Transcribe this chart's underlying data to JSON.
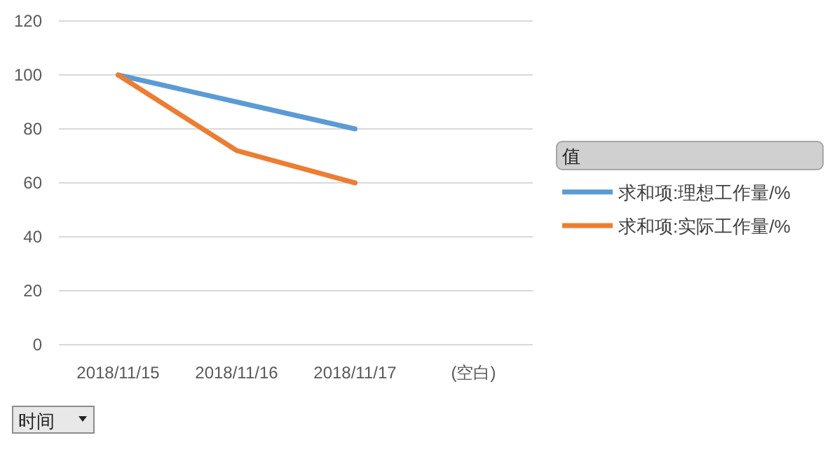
{
  "chart_data": {
    "type": "line",
    "categories": [
      "2018/11/15",
      "2018/11/16",
      "2018/11/17",
      "(空白)"
    ],
    "series": [
      {
        "name": "求和项:理想工作量/%",
        "color": "#5b9bd5",
        "values": [
          100,
          90,
          80,
          null
        ]
      },
      {
        "name": "求和项:实际工作量/%",
        "color": "#ed7d31",
        "values": [
          100,
          72,
          60,
          null
        ]
      }
    ],
    "ylim": [
      0,
      120
    ],
    "yticks": [
      0,
      20,
      40,
      60,
      80,
      100,
      120
    ],
    "grid": "y",
    "legend": "right",
    "legend_title": "值",
    "marker": "none",
    "annotations": [
      "时间"
    ]
  }
}
